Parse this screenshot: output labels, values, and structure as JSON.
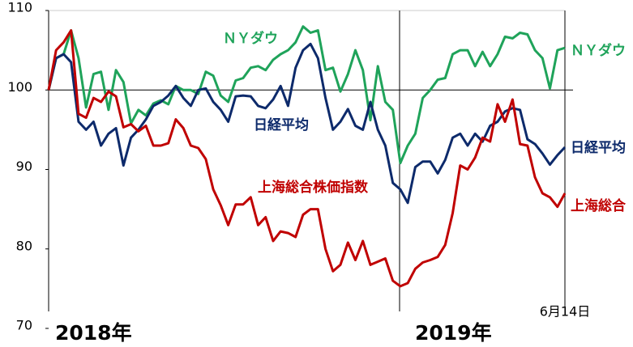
{
  "chart_data": {
    "type": "line",
    "categories": [
      null,
      null,
      null,
      null,
      null,
      null,
      null,
      null,
      null,
      null,
      null,
      null,
      null,
      null,
      null,
      null,
      null,
      null,
      null,
      null,
      null,
      null,
      null,
      null,
      null,
      null,
      null,
      null,
      null,
      null,
      null,
      null,
      null,
      null,
      null,
      null,
      null,
      null,
      null,
      null,
      null,
      null,
      null,
      null,
      null,
      null,
      null,
      null,
      null,
      null,
      null,
      null,
      null,
      null,
      null,
      null,
      null,
      null,
      null,
      null,
      null,
      null,
      null,
      null,
      null,
      null,
      null,
      null,
      null,
      "6月14日"
    ],
    "period_labels": [
      "2018年",
      "2019年"
    ],
    "ylim": [
      70,
      110
    ],
    "yticks": [
      70,
      80,
      90,
      100,
      110
    ],
    "reference_line": 100,
    "series": [
      {
        "name": "ＮＹダウ",
        "color": "#1fa35a",
        "values": [
          100,
          104,
          104.5,
          107.5,
          104,
          97.8,
          102,
          102.3,
          97.5,
          102.5,
          101,
          95.8,
          97.5,
          96.8,
          98.3,
          98.7,
          98.2,
          100.5,
          100,
          100,
          99.5,
          102.3,
          101.8,
          99.3,
          98.5,
          101.2,
          101.5,
          102.8,
          103,
          102.5,
          103.8,
          104.5,
          105,
          106,
          108,
          107.2,
          107.5,
          102.5,
          102.8,
          99.8,
          102,
          105,
          102.5,
          96.2,
          103,
          98.5,
          97.5,
          90.8,
          93,
          94.5,
          99,
          100,
          101.3,
          101.5,
          104.5,
          105,
          105,
          103,
          104.8,
          103,
          104.5,
          106.7,
          106.5,
          107.2,
          107,
          105,
          104,
          100.2,
          105,
          105.3
        ]
      },
      {
        "name": "日経平均",
        "color": "#0d2a6b",
        "values": [
          100,
          104,
          104.5,
          103.5,
          96,
          95,
          96,
          93,
          94.5,
          95.2,
          90.5,
          94,
          95,
          96.3,
          98,
          98.5,
          99.3,
          100.5,
          99,
          98,
          100,
          100.2,
          98.5,
          97.5,
          96,
          99.2,
          99.3,
          99.2,
          98,
          97.7,
          98.8,
          100.5,
          98,
          102.8,
          105,
          105.8,
          104,
          99,
          95,
          96,
          97.6,
          95.5,
          95,
          98.5,
          95,
          93,
          88.3,
          87.5,
          85.8,
          90.3,
          91,
          91,
          89.5,
          91.2,
          94,
          94.5,
          93,
          94.5,
          93.5,
          95.5,
          96,
          97.3,
          97.7,
          97.5,
          93.8,
          93.2,
          92,
          90.6,
          91.8,
          92.8
        ]
      },
      {
        "name": "上海総合",
        "color": "#c00000",
        "values": [
          100,
          105,
          106,
          107.5,
          97,
          96.5,
          99,
          98.5,
          99.8,
          99.2,
          95.3,
          95.7,
          94.8,
          95.5,
          93,
          93,
          93.3,
          96.3,
          95.2,
          93,
          92.7,
          91.3,
          87.5,
          85.5,
          83,
          85.6,
          85.6,
          86.5,
          83,
          84,
          81,
          82.2,
          82,
          81.5,
          84.3,
          85,
          85,
          80,
          77.2,
          78,
          80.8,
          78.6,
          81,
          78,
          78.4,
          78.8,
          76,
          75.3,
          75.7,
          77.5,
          78.3,
          78.6,
          79,
          80.5,
          84.5,
          90.5,
          90,
          91.5,
          94,
          93.5,
          98.2,
          96,
          98.8,
          93.2,
          93,
          89,
          87,
          86.5,
          85.3,
          87
        ]
      }
    ],
    "annotations": [
      "ＮＹダウ",
      "日経平均",
      "上海総合株価指数"
    ]
  }
}
